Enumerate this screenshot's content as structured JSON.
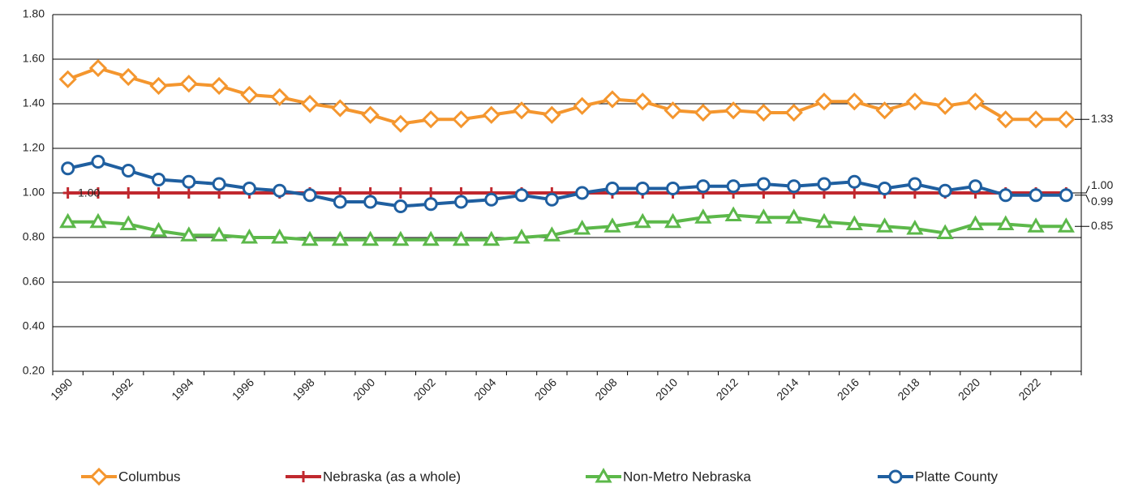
{
  "chart_data": {
    "type": "line",
    "categories": [
      "1990",
      null,
      "1992",
      null,
      "1994",
      null,
      "1996",
      null,
      "1998",
      null,
      "2000",
      null,
      "2002",
      null,
      "2004",
      null,
      "2006",
      null,
      "2008",
      null,
      "2010",
      null,
      "2012",
      null,
      "2014",
      null,
      "2016",
      null,
      "2018",
      null,
      "2020",
      null,
      "2022",
      null
    ],
    "ylim": [
      0.2,
      1.8
    ],
    "yticks": [
      {
        "value": 0.2,
        "label": "0.20"
      },
      {
        "value": 0.4,
        "label": "0.40"
      },
      {
        "value": 0.6,
        "label": "0.60"
      },
      {
        "value": 0.8,
        "label": "0.80"
      },
      {
        "value": 1.0,
        "label": "1.00"
      },
      {
        "value": 1.2,
        "label": "1.20"
      },
      {
        "value": 1.4,
        "label": "1.40"
      },
      {
        "value": 1.6,
        "label": "1.60"
      },
      {
        "value": 1.8,
        "label": "1.80"
      }
    ],
    "grid": true,
    "legend": "bottom",
    "series": [
      {
        "name": "Columbus",
        "color": "#f4962e",
        "marker": "diamond",
        "values": [
          1.51,
          1.56,
          1.52,
          1.48,
          1.49,
          1.48,
          1.44,
          1.43,
          1.4,
          1.38,
          1.35,
          1.31,
          1.33,
          1.33,
          1.35,
          1.37,
          1.35,
          1.39,
          1.42,
          1.41,
          1.37,
          1.36,
          1.37,
          1.36,
          1.36,
          1.41,
          1.41,
          1.37,
          1.41,
          1.39,
          1.41,
          1.33,
          1.33,
          1.33
        ],
        "value_labels": [
          null,
          null,
          null,
          null,
          null,
          null,
          null,
          null,
          null,
          null,
          null,
          null,
          null,
          null,
          null,
          null,
          null,
          null,
          null,
          null,
          null,
          null,
          null,
          null,
          null,
          null,
          null,
          null,
          null,
          null,
          null,
          null,
          null,
          "1.33"
        ]
      },
      {
        "name": "Nebraska (as a whole)",
        "color": "#c0282e",
        "marker": "plus",
        "values": [
          1,
          1,
          1,
          1,
          1,
          1,
          1,
          1,
          1,
          1,
          1,
          1,
          1,
          1,
          1,
          1,
          1,
          1,
          1,
          1,
          1,
          1,
          1,
          1,
          1,
          1,
          1,
          1,
          1,
          1,
          1,
          1,
          1,
          1
        ],
        "value_labels": [
          "1.00",
          null,
          null,
          null,
          null,
          null,
          null,
          null,
          null,
          null,
          null,
          null,
          null,
          null,
          null,
          null,
          null,
          null,
          null,
          null,
          null,
          null,
          null,
          null,
          null,
          null,
          null,
          null,
          null,
          null,
          null,
          null,
          null,
          "1.00"
        ]
      },
      {
        "name": "Non-Metro Nebraska",
        "color": "#5cb84a",
        "marker": "triangle",
        "values": [
          0.87,
          0.87,
          0.86,
          0.83,
          0.81,
          0.81,
          0.8,
          0.8,
          0.79,
          0.79,
          0.79,
          0.79,
          0.79,
          0.79,
          0.79,
          0.8,
          0.81,
          0.84,
          0.85,
          0.87,
          0.87,
          0.89,
          0.9,
          0.89,
          0.89,
          0.87,
          0.86,
          0.85,
          0.84,
          0.82,
          0.86,
          0.86,
          0.85,
          0.85
        ],
        "value_labels": [
          null,
          null,
          null,
          null,
          null,
          null,
          null,
          null,
          null,
          null,
          null,
          null,
          null,
          null,
          null,
          null,
          null,
          null,
          null,
          null,
          null,
          null,
          null,
          null,
          null,
          null,
          null,
          null,
          null,
          null,
          null,
          null,
          null,
          "0.85"
        ]
      },
      {
        "name": "Platte County",
        "color": "#1f5fa0",
        "marker": "circle",
        "values": [
          1.11,
          1.14,
          1.1,
          1.06,
          1.05,
          1.04,
          1.02,
          1.01,
          0.99,
          0.96,
          0.96,
          0.94,
          0.95,
          0.96,
          0.97,
          0.99,
          0.97,
          1.0,
          1.02,
          1.02,
          1.02,
          1.03,
          1.03,
          1.04,
          1.03,
          1.04,
          1.05,
          1.02,
          1.04,
          1.01,
          1.03,
          0.99,
          0.99,
          0.99
        ],
        "value_labels": [
          null,
          null,
          null,
          null,
          null,
          null,
          null,
          null,
          null,
          null,
          null,
          null,
          null,
          null,
          null,
          null,
          null,
          null,
          null,
          null,
          null,
          null,
          null,
          null,
          null,
          null,
          null,
          null,
          null,
          null,
          null,
          null,
          null,
          "0.99"
        ]
      }
    ]
  }
}
